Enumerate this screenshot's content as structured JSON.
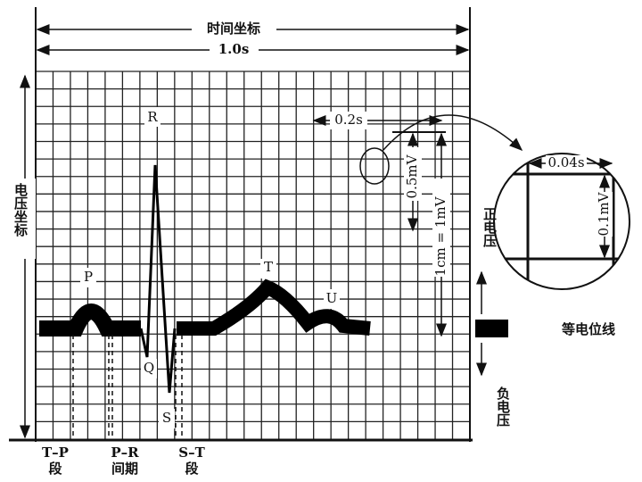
{
  "title": "时间坐标",
  "duration": "1.0s",
  "voltage_axis": "电压坐标",
  "waves": {
    "R": "R",
    "P": "P",
    "T": "T",
    "U": "U",
    "Q": "Q",
    "S": "S"
  },
  "scale": {
    "time": "0.2s",
    "voltage": "0.5mV",
    "calibration": "1cm = 1mV"
  },
  "polarity": {
    "positive": "正电压",
    "negative": "负电压"
  },
  "magnified": {
    "time": "0.04s",
    "voltage": "0.1mV"
  },
  "isoelectric": "等电位线",
  "segments": [
    {
      "top": "T–P",
      "bottom": "段"
    },
    {
      "top": "P–R",
      "bottom": "间期"
    },
    {
      "top": "S–T",
      "bottom": "段"
    }
  ]
}
